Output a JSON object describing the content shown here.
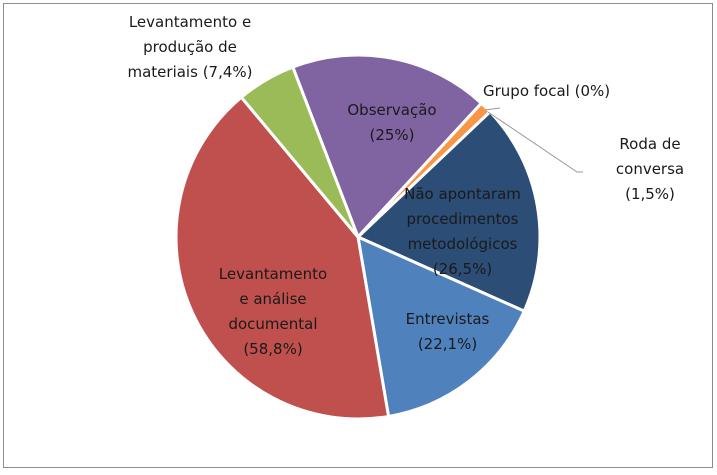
{
  "chart_data": {
    "type": "pie",
    "categories": [
      "Observação",
      "Grupo focal",
      "Roda de conversa",
      "Não apontaram procedimentos metodológicos",
      "Entrevistas",
      "Levantamento e análise documental",
      "Levantamento e produção de materiais"
    ],
    "values": [
      25,
      0,
      1.5,
      26.5,
      22.1,
      58.8,
      7.4
    ],
    "value_labels": [
      "(25%)",
      "(0%)",
      "(1,5%)",
      "(26,5%)",
      "(22,1%)",
      "(58,8%)",
      "(7,4%)"
    ],
    "colors": [
      "#8064a2",
      "#4bacc6",
      "#f79646",
      "#2c4d75",
      "#4f81bd",
      "#c0504d",
      "#9bbb59"
    ]
  }
}
